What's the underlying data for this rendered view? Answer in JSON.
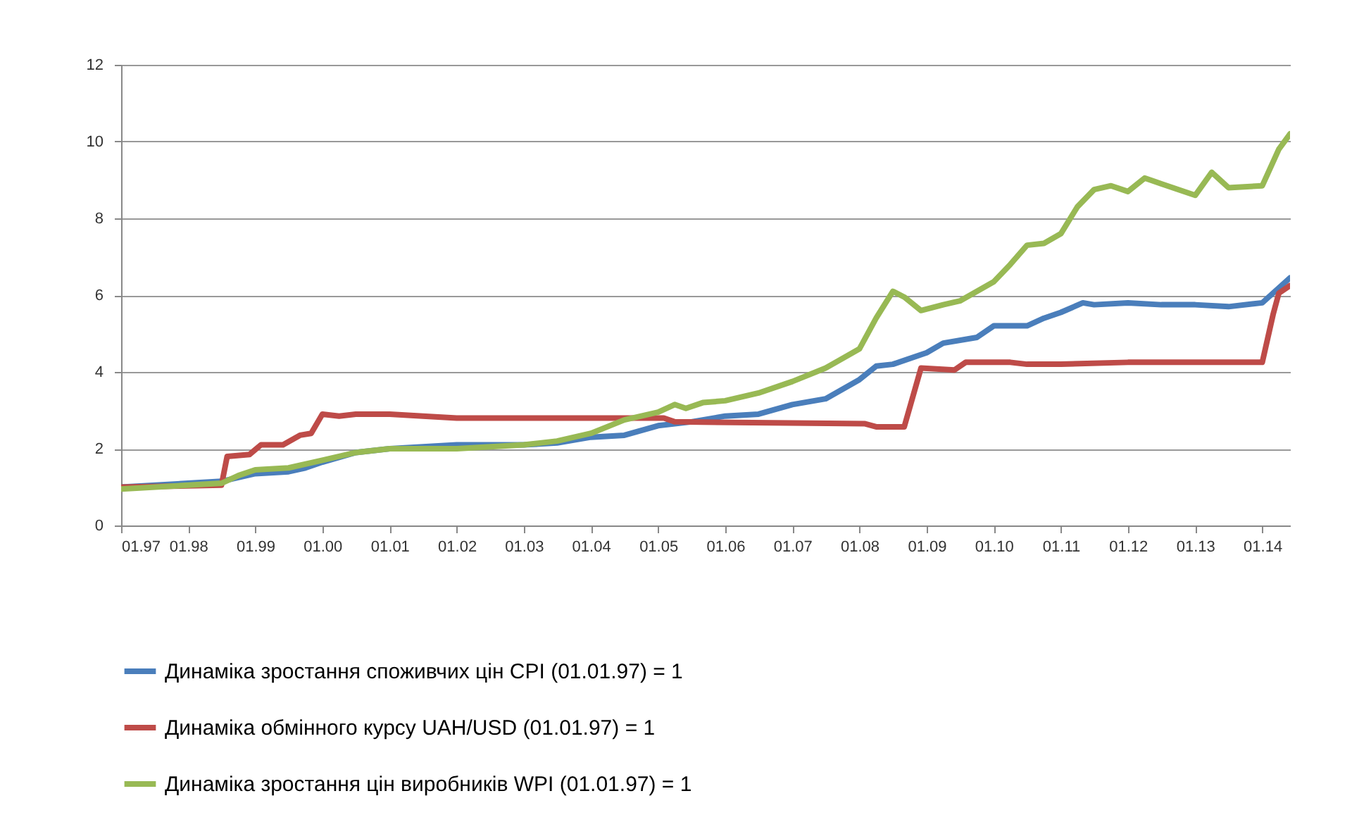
{
  "chart_data": {
    "type": "line",
    "legend": "bottom",
    "grid": "y",
    "marker": "none",
    "line_style": "solid",
    "xlim": [
      "1997-01",
      "2014-06"
    ],
    "xticks": [
      {
        "value": "1997-01",
        "label": "01.97"
      },
      {
        "value": "1998-01",
        "label": "01.98"
      },
      {
        "value": "1999-01",
        "label": "01.99"
      },
      {
        "value": "2000-01",
        "label": "01.00"
      },
      {
        "value": "2001-01",
        "label": "01.01"
      },
      {
        "value": "2002-01",
        "label": "01.02"
      },
      {
        "value": "2003-01",
        "label": "01.03"
      },
      {
        "value": "2004-01",
        "label": "01.04"
      },
      {
        "value": "2005-01",
        "label": "01.05"
      },
      {
        "value": "2006-01",
        "label": "01.06"
      },
      {
        "value": "2007-01",
        "label": "01.07"
      },
      {
        "value": "2008-01",
        "label": "01.08"
      },
      {
        "value": "2009-01",
        "label": "01.09"
      },
      {
        "value": "2010-01",
        "label": "01.10"
      },
      {
        "value": "2011-01",
        "label": "01.11"
      },
      {
        "value": "2012-01",
        "label": "01.12"
      },
      {
        "value": "2013-01",
        "label": "01.13"
      },
      {
        "value": "2014-01",
        "label": "01.14"
      }
    ],
    "ylim": [
      0,
      12
    ],
    "yticks": [
      0,
      2,
      4,
      6,
      8,
      10,
      12
    ],
    "series": [
      {
        "name": "Динаміка зростання споживчих цін CPI (01.01.97) = 1",
        "color": "#4a7ebb",
        "x": [
          "1997-01",
          "1998-01",
          "1998-07",
          "1999-01",
          "1999-07",
          "1999-10",
          "2000-01",
          "2000-07",
          "2001-01",
          "2002-01",
          "2003-01",
          "2003-07",
          "2004-01",
          "2004-07",
          "2005-01",
          "2005-07",
          "2006-01",
          "2006-07",
          "2007-01",
          "2007-07",
          "2008-01",
          "2008-04",
          "2008-07",
          "2009-01",
          "2009-04",
          "2009-10",
          "2010-01",
          "2010-07",
          "2010-10",
          "2011-01",
          "2011-05",
          "2011-07",
          "2012-01",
          "2012-07",
          "2013-01",
          "2013-07",
          "2014-01",
          "2014-06"
        ],
        "values": [
          1.0,
          1.1,
          1.15,
          1.35,
          1.4,
          1.5,
          1.65,
          1.9,
          2.0,
          2.1,
          2.1,
          2.15,
          2.3,
          2.35,
          2.6,
          2.7,
          2.85,
          2.9,
          3.15,
          3.3,
          3.8,
          4.15,
          4.2,
          4.5,
          4.75,
          4.9,
          5.2,
          5.2,
          5.4,
          5.55,
          5.8,
          5.75,
          5.8,
          5.75,
          5.75,
          5.7,
          5.8,
          6.45
        ]
      },
      {
        "name": "Динаміка обмінного курсу UAH/USD (01.01.97) = 1",
        "color": "#be4b48",
        "x": [
          "1997-01",
          "1998-07",
          "1998-08",
          "1998-12",
          "1999-02",
          "1999-06",
          "1999-09",
          "1999-11",
          "2000-01",
          "2000-04",
          "2000-07",
          "2001-01",
          "2001-07",
          "2002-01",
          "2005-02",
          "2005-04",
          "2008-02",
          "2008-04",
          "2008-09",
          "2008-12",
          "2009-06",
          "2009-08",
          "2010-04",
          "2010-07",
          "2011-01",
          "2012-01",
          "2013-01",
          "2014-01",
          "2014-03",
          "2014-04",
          "2014-06"
        ],
        "values": [
          1.0,
          1.05,
          1.8,
          1.85,
          2.1,
          2.1,
          2.35,
          2.4,
          2.9,
          2.85,
          2.9,
          2.9,
          2.85,
          2.8,
          2.8,
          2.7,
          2.65,
          2.57,
          2.57,
          4.1,
          4.05,
          4.25,
          4.25,
          4.2,
          4.2,
          4.25,
          4.25,
          4.25,
          5.5,
          6.05,
          6.25
        ]
      },
      {
        "name": "Динаміка зростання цін виробників WPI (01.01.97) = 1",
        "color": "#98b954",
        "x": [
          "1997-01",
          "1998-01",
          "1998-07",
          "1998-10",
          "1999-01",
          "1999-07",
          "2000-01",
          "2000-07",
          "2001-01",
          "2002-01",
          "2003-01",
          "2003-07",
          "2004-01",
          "2004-07",
          "2005-01",
          "2005-04",
          "2005-06",
          "2005-09",
          "2006-01",
          "2006-07",
          "2007-01",
          "2007-07",
          "2008-01",
          "2008-04",
          "2008-07",
          "2008-09",
          "2008-12",
          "2009-04",
          "2009-07",
          "2010-01",
          "2010-04",
          "2010-07",
          "2010-10",
          "2011-01",
          "2011-04",
          "2011-07",
          "2011-10",
          "2012-01",
          "2012-04",
          "2012-07",
          "2013-01",
          "2013-04",
          "2013-07",
          "2014-01",
          "2014-04",
          "2014-06"
        ],
        "values": [
          0.95,
          1.05,
          1.1,
          1.3,
          1.45,
          1.5,
          1.7,
          1.9,
          2.0,
          2.0,
          2.1,
          2.2,
          2.4,
          2.75,
          2.95,
          3.15,
          3.05,
          3.2,
          3.25,
          3.45,
          3.75,
          4.1,
          4.6,
          5.4,
          6.1,
          5.95,
          5.6,
          5.75,
          5.85,
          6.35,
          6.8,
          7.3,
          7.35,
          7.6,
          8.3,
          8.75,
          8.85,
          8.7,
          9.05,
          8.9,
          8.6,
          9.2,
          8.8,
          8.85,
          9.8,
          10.2
        ]
      }
    ]
  }
}
